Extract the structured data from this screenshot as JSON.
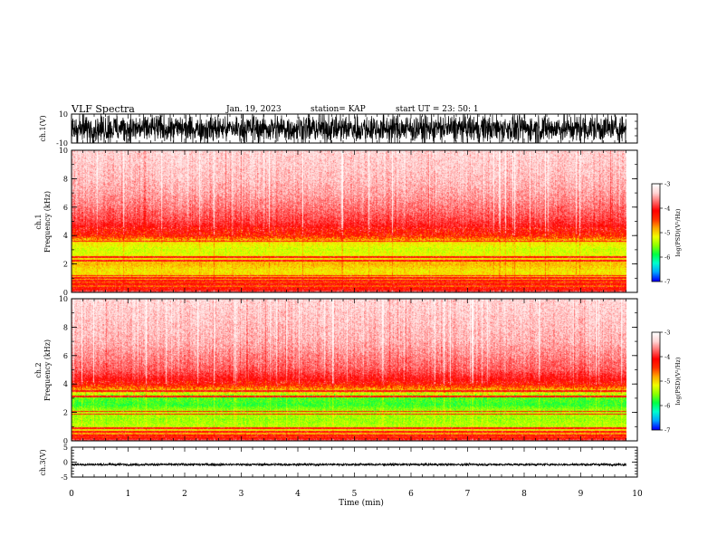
{
  "header": {
    "title": "VLF Spectra",
    "date": "Jan. 19, 2023",
    "station": "station= KAP",
    "start": "start  UT =   23: 50: 1"
  },
  "colors": {
    "waveform": "#000000",
    "frame": "#000000",
    "background": "#ffffff",
    "colormap": [
      "#00009a",
      "#0000ff",
      "#00a8ff",
      "#00ffd0",
      "#00ff44",
      "#8cff00",
      "#f0ff00",
      "#ffa800",
      "#ff3000",
      "#ff0000",
      "#ff6a6a",
      "#ffd5d5",
      "#ffffff"
    ]
  },
  "chart_data": [
    {
      "id": "ch1-waveform",
      "type": "line",
      "ylabel": "ch.1(V)",
      "ylim": [
        -10,
        10
      ],
      "yticks": [
        10,
        -10
      ],
      "xlim": [
        0,
        10
      ],
      "description_values": {
        "mean": 0,
        "amplitude_range": [
          -10,
          10
        ]
      },
      "data_extent_min": 9.8
    },
    {
      "id": "ch1-spectrogram",
      "type": "heatmap",
      "ylabel": "ch.1\nFrequency  (kHz)",
      "ylim": [
        0,
        10
      ],
      "yticks": [
        0,
        2,
        4,
        6,
        8,
        10
      ],
      "xlim": [
        0,
        10
      ],
      "data_extent_min": 9.8,
      "colorbar": {
        "label": "log(PSD)(V²/Hz)",
        "range": [
          -7,
          -3
        ],
        "ticks": [
          -3,
          -4,
          -5,
          -6,
          -7
        ]
      },
      "profile_khz": [
        0,
        0.3,
        0.6,
        1.0,
        1.5,
        2.0,
        2.5,
        3.0,
        3.5,
        4.0,
        4.5,
        5.0,
        6.0,
        7.0,
        8.0,
        9.0,
        10.0
      ],
      "profile_logpsd": [
        -3.5,
        -4.5,
        -4.2,
        -4.8,
        -4.9,
        -4.7,
        -5.0,
        -5.1,
        -4.9,
        -4.1,
        -3.9,
        -3.7,
        -3.5,
        -3.35,
        -3.25,
        -3.2,
        -3.15
      ],
      "lines_khz": [
        0.3,
        0.55,
        0.8,
        1.0,
        1.15,
        2.2,
        2.45,
        3.6
      ],
      "transition_khz": 4.1
    },
    {
      "id": "ch2-spectrogram",
      "type": "heatmap",
      "ylabel": "ch.2\nFrequency  (kHz)",
      "ylim": [
        0,
        10
      ],
      "yticks": [
        0,
        2,
        4,
        6,
        8,
        10
      ],
      "xlim": [
        0,
        10
      ],
      "data_extent_min": 9.8,
      "colorbar": {
        "label": "log(PSD)(V²/Hz)",
        "range": [
          -7,
          -3
        ],
        "ticks": [
          -3,
          -4,
          -5,
          -6,
          -7
        ]
      },
      "profile_khz": [
        0,
        0.3,
        0.6,
        1.0,
        1.5,
        2.0,
        2.5,
        3.0,
        3.5,
        4.0,
        4.5,
        5.0,
        6.0,
        7.0,
        8.0,
        9.0,
        10.0
      ],
      "profile_logpsd": [
        -3.6,
        -4.4,
        -4.8,
        -5.2,
        -5.3,
        -5.2,
        -5.6,
        -5.5,
        -4.8,
        -4.0,
        -3.8,
        -3.6,
        -3.45,
        -3.3,
        -3.25,
        -3.2,
        -3.15
      ],
      "lines_khz": [
        0.35,
        0.6,
        0.85,
        1.85,
        2.05,
        3.1,
        3.5
      ],
      "transition_khz": 3.7
    },
    {
      "id": "ch3-waveform",
      "type": "line",
      "ylabel": "ch.3(V)",
      "ylim": [
        -5,
        5
      ],
      "yticks": [
        5,
        0,
        -5
      ],
      "xlim": [
        0,
        10
      ],
      "xlabel": "Time  (min)",
      "xticks": [
        0,
        1,
        2,
        3,
        4,
        5,
        6,
        7,
        8,
        9,
        10
      ],
      "description_values": {
        "mean": -0.8,
        "amplitude_range": [
          -1.3,
          -0.3
        ]
      },
      "data_extent_min": 9.8
    }
  ]
}
